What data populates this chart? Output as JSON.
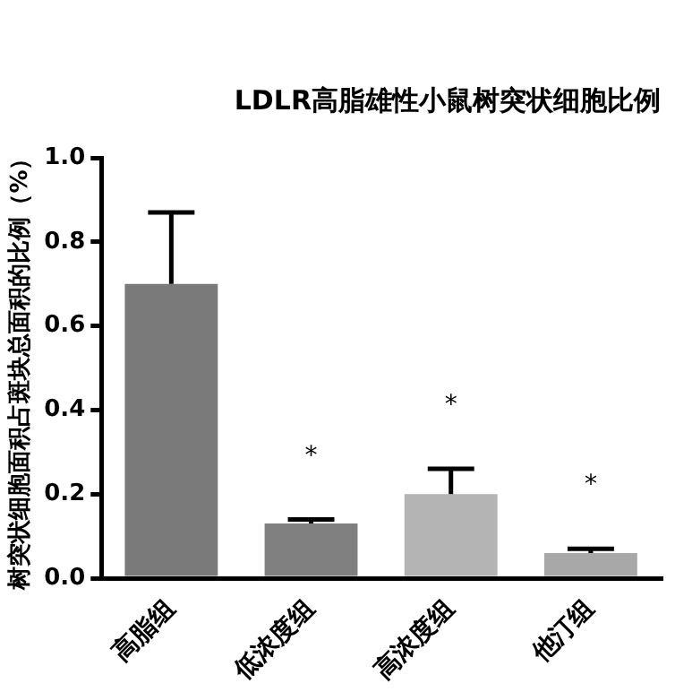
{
  "chart_data": {
    "type": "bar",
    "title": "LDLR高脂雄性小鼠树突状细胞比例",
    "ylabel": "树突状细胞面积占斑块总面积的比例（%）",
    "categories": [
      "高脂组",
      "低浓度组",
      "高浓度组",
      "他汀组"
    ],
    "values": [
      0.7,
      0.13,
      0.2,
      0.06
    ],
    "colors": [
      "#7a7a7a",
      "#808080",
      "#b4b4b4",
      "#a8a8a8"
    ],
    "errors": [
      [
        0.7,
        0.87
      ],
      [
        0.13,
        0.14
      ],
      [
        0.2,
        0.26
      ],
      [
        0.06,
        0.07
      ]
    ],
    "annotations": [
      "*",
      "*",
      "*"
    ],
    "ylim": [
      0,
      1
    ],
    "yticks": [
      {
        "value": 0,
        "label": "0.0"
      },
      0.2,
      0.4,
      0.6,
      0.8,
      {
        "value": 1,
        "label": "1.0"
      }
    ],
    "grid": false,
    "legend": false
  }
}
